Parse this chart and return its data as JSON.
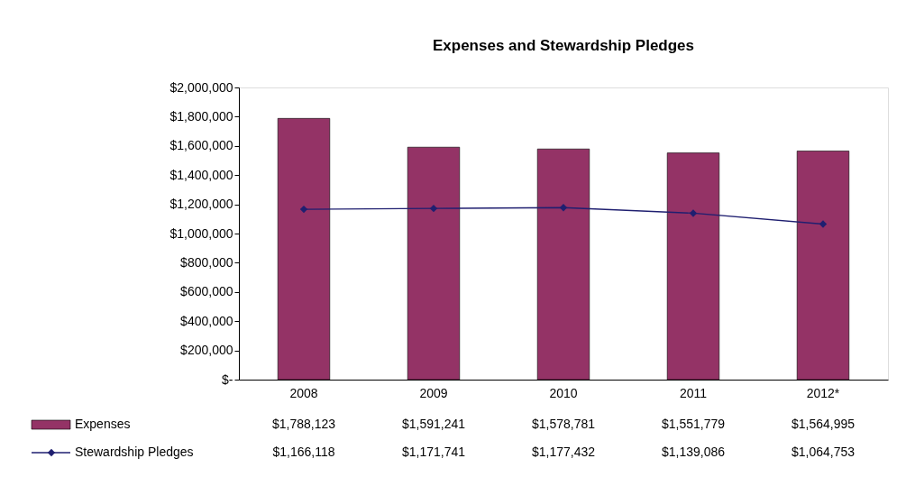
{
  "chart_data": {
    "type": "bar",
    "title": "Expenses and Stewardship Pledges",
    "categories": [
      "2008",
      "2009",
      "2010",
      "2011",
      "2012*"
    ],
    "series": [
      {
        "name": "Expenses",
        "color": "#943366",
        "values": [
          1788123,
          1591241,
          1578781,
          1551779,
          1564995
        ],
        "value_labels": [
          "$1,788,123",
          "$1,591,241",
          "$1,578,781",
          "$1,551,779",
          "$1,564,995"
        ]
      },
      {
        "name": "Stewardship Pledges",
        "type": "line",
        "color": "#1f1f70",
        "marker": "diamond",
        "values": [
          1166118,
          1171741,
          1177432,
          1139086,
          1064753
        ],
        "value_labels": [
          "$1,166,118",
          "$1,171,741",
          "$1,177,432",
          "$1,139,086",
          "$1,064,753"
        ]
      }
    ],
    "ylim": [
      0,
      2000000
    ],
    "yticks": [
      {
        "value": 0,
        "label": "$-"
      },
      {
        "value": 200000,
        "label": "$200,000"
      },
      {
        "value": 400000,
        "label": "$400,000"
      },
      {
        "value": 600000,
        "label": "$600,000"
      },
      {
        "value": 800000,
        "label": "$800,000"
      },
      {
        "value": 1000000,
        "label": "$1,000,000"
      },
      {
        "value": 1200000,
        "label": "$1,200,000"
      },
      {
        "value": 1400000,
        "label": "$1,400,000"
      },
      {
        "value": 1600000,
        "label": "$1,600,000"
      },
      {
        "value": 1800000,
        "label": "$1,800,000"
      },
      {
        "value": 2000000,
        "label": "$2,000,000"
      }
    ],
    "grid": false,
    "legend": "bottom"
  }
}
